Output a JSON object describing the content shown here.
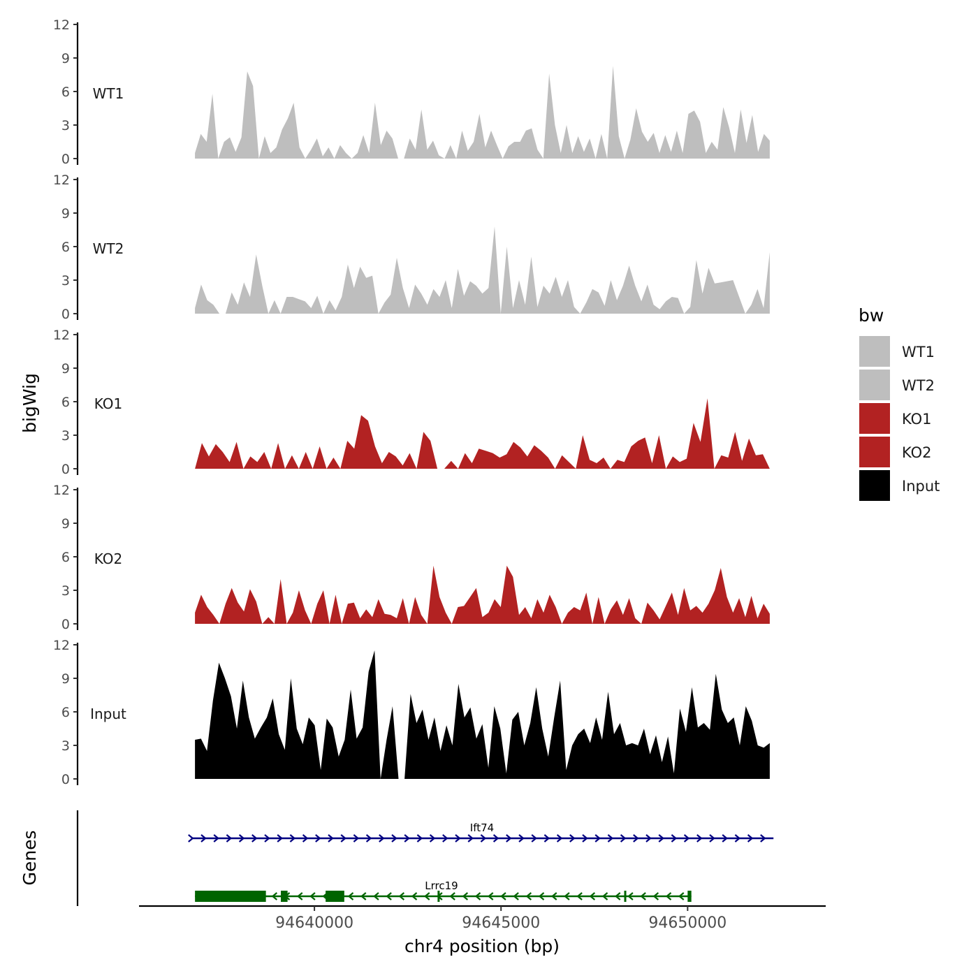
{
  "chart_data": {
    "type": "area",
    "ylabel": "bigWig",
    "xlabel": "chr4 position (bp)",
    "xlim": [
      94635300,
      94653700
    ],
    "data_x_range": [
      94636800,
      94652200
    ],
    "ylim": [
      0,
      12
    ],
    "yticks": [
      0,
      3,
      6,
      9,
      12
    ],
    "xticks": [
      94640000,
      94645000,
      94650000
    ],
    "xtick_labels": [
      "94640000",
      "94645000",
      "94650000"
    ],
    "grid": false,
    "legend": {
      "title": "bw",
      "position": "right",
      "items": [
        {
          "label": "WT1",
          "color": "#bebebe"
        },
        {
          "label": "WT2",
          "color": "#bebebe"
        },
        {
          "label": "KO1",
          "color": "#b22222"
        },
        {
          "label": "KO2",
          "color": "#b22222"
        },
        {
          "label": "Input",
          "color": "#000000"
        }
      ]
    },
    "series": [
      {
        "name": "WT1",
        "color": "#bebebe",
        "values": [
          0.5,
          2.2,
          1.5,
          5.8,
          0,
          1.5,
          1.9,
          0.6,
          1.9,
          7.8,
          6.5,
          0,
          2.0,
          0.5,
          1.0,
          2.6,
          3.6,
          5.0,
          1.0,
          0,
          0.8,
          1.8,
          0.2,
          1.0,
          0,
          1.2,
          0.5,
          0,
          0.5,
          2.1,
          0.5,
          5.0,
          1.2,
          2.5,
          1.8,
          0,
          0,
          1.8,
          0.8,
          4.4,
          0.8,
          1.6,
          0.3,
          0,
          1.2,
          0,
          2.5,
          0.7,
          1.5,
          4.0,
          1.0,
          2.5,
          1.2,
          0,
          1.1,
          1.5,
          1.5,
          2.5,
          2.7,
          0.8,
          0,
          7.6,
          3.0,
          0.5,
          3.0,
          0.5,
          2.0,
          0.6,
          1.8,
          0,
          2.2,
          0,
          8.3,
          2.0,
          0,
          1.7,
          4.5,
          2.4,
          1.5,
          2.3,
          0.5,
          2.1,
          0.6,
          2.5,
          0.5,
          4.0,
          4.3,
          3.3,
          0.5,
          1.5,
          0.8,
          4.6,
          2.8,
          0.5,
          4.4,
          1.4,
          3.9,
          0.6,
          2.2,
          1.6
        ]
      },
      {
        "name": "WT2",
        "color": "#bebebe",
        "values": [
          0.5,
          2.6,
          1.2,
          0.8,
          0,
          0,
          1.9,
          0.8,
          2.8,
          1.5,
          5.3,
          2.5,
          0,
          1.2,
          0,
          1.5,
          1.5,
          1.3,
          1.1,
          0.5,
          1.6,
          0,
          1.2,
          0.3,
          1.5,
          4.4,
          2.3,
          4.2,
          3.2,
          3.4,
          0,
          1.0,
          1.7,
          5.0,
          2.3,
          0.5,
          2.6,
          1.8,
          0.8,
          2.2,
          1.5,
          3.0,
          0.5,
          4.0,
          1.6,
          2.9,
          2.5,
          1.8,
          2.3,
          7.8,
          0,
          6.0,
          0.5,
          3.0,
          0.8,
          5.1,
          0.6,
          2.5,
          1.8,
          3.3,
          1.5,
          3.0,
          0.6,
          0,
          1.0,
          2.2,
          1.9,
          0.7,
          3.0,
          1.2,
          2.5,
          4.3,
          2.5,
          1.1,
          2.6,
          0.8,
          0.4,
          1.1,
          1.5,
          1.4,
          0,
          0.6,
          4.8,
          1.8,
          4.1,
          2.7,
          2.8,
          2.9,
          3.0,
          1.5,
          0,
          0.8,
          2.2,
          0.5,
          5.5
        ]
      },
      {
        "name": "KO1",
        "color": "#b22222",
        "values": [
          0,
          2.3,
          1.1,
          2.2,
          1.5,
          0.6,
          2.4,
          0,
          1.1,
          0.6,
          1.5,
          0,
          2.3,
          0,
          1.2,
          0,
          1.5,
          0,
          2.0,
          0,
          1.0,
          0,
          2.5,
          1.8,
          4.8,
          4.3,
          2.0,
          0.5,
          1.5,
          1.1,
          0.3,
          1.4,
          0,
          3.3,
          2.5,
          0,
          0,
          0.7,
          0,
          1.4,
          0.5,
          1.8,
          1.6,
          1.4,
          1.0,
          1.3,
          2.4,
          1.9,
          1.1,
          2.1,
          1.6,
          1.0,
          0,
          1.2,
          0.6,
          0,
          3.0,
          0.8,
          0.5,
          1.0,
          0,
          0.8,
          0.6,
          2.0,
          2.5,
          2.8,
          0.5,
          3.0,
          0,
          1.1,
          0.6,
          0.9,
          4.1,
          2.4,
          6.3,
          0,
          1.2,
          1.0,
          3.3,
          0.7,
          2.7,
          1.2,
          1.3,
          0
        ]
      },
      {
        "name": "KO2",
        "color": "#b22222",
        "values": [
          1.0,
          2.6,
          1.5,
          0.8,
          0,
          1.8,
          3.2,
          1.9,
          1.1,
          3.1,
          2.0,
          0,
          0.6,
          0,
          4.0,
          0,
          1.0,
          3.0,
          1.2,
          0,
          1.8,
          3.0,
          0,
          2.6,
          0,
          1.8,
          1.9,
          0.5,
          1.3,
          0.6,
          2.2,
          0.9,
          0.8,
          0.5,
          2.3,
          0,
          2.4,
          0.8,
          0,
          5.2,
          2.4,
          1.0,
          0,
          1.5,
          1.6,
          2.4,
          3.2,
          0.6,
          1.0,
          2.2,
          1.5,
          5.2,
          4.2,
          0.8,
          1.5,
          0.5,
          2.2,
          1.0,
          2.6,
          1.5,
          0,
          1.0,
          1.5,
          1.2,
          2.8,
          0,
          2.4,
          0,
          1.3,
          2.1,
          0.8,
          2.3,
          0.5,
          0,
          1.9,
          1.2,
          0.4,
          1.6,
          2.8,
          0.8,
          3.2,
          1.2,
          1.6,
          1.0,
          1.8,
          3.0,
          5.0,
          2.4,
          1.0,
          2.3,
          0.6,
          2.5,
          0.5,
          1.8,
          0.9
        ]
      },
      {
        "name": "Input",
        "color": "#000000",
        "values": [
          3.5,
          3.6,
          2.5,
          7.0,
          10.4,
          9.0,
          7.4,
          4.5,
          8.8,
          5.5,
          3.6,
          4.6,
          5.5,
          7.2,
          4.0,
          2.6,
          9.0,
          4.5,
          3.1,
          5.5,
          4.8,
          0.8,
          5.4,
          4.6,
          2.0,
          3.5,
          8.0,
          3.6,
          4.6,
          9.6,
          11.5,
          0,
          3.5,
          6.5,
          0,
          0,
          7.6,
          5.0,
          6.2,
          3.5,
          5.5,
          2.5,
          4.8,
          3.0,
          8.5,
          5.5,
          6.4,
          3.6,
          4.9,
          1.0,
          6.5,
          4.5,
          0.5,
          5.3,
          6.0,
          3.0,
          5.0,
          8.2,
          4.5,
          2.0,
          5.5,
          8.8,
          0.8,
          3.0,
          4.0,
          4.5,
          3.2,
          5.5,
          3.5,
          7.8,
          4.0,
          5.0,
          3.0,
          3.2,
          3.0,
          4.5,
          2.2,
          3.9,
          1.5,
          3.8,
          0.5,
          6.3,
          4.2,
          8.2,
          4.6,
          5.0,
          4.4,
          9.4,
          6.2,
          5.0,
          5.5,
          3.0,
          6.5,
          5.2,
          3.0,
          2.8,
          3.2
        ]
      }
    ],
    "genes": [
      {
        "name": "Ift74",
        "strand": "+",
        "color": "#000080",
        "start": 94636700,
        "end": 94652300
      },
      {
        "name": "Lrrc19",
        "strand": "-",
        "color": "#006400",
        "start": 94636800,
        "end": 94650100,
        "exons": [
          [
            94636800,
            94638700
          ],
          [
            94639100,
            94639280
          ],
          [
            94640300,
            94640800
          ],
          [
            94643300,
            94643350
          ],
          [
            94648300,
            94648350
          ],
          [
            94650000,
            94650100
          ]
        ]
      }
    ],
    "genes_track_label": "Genes"
  }
}
